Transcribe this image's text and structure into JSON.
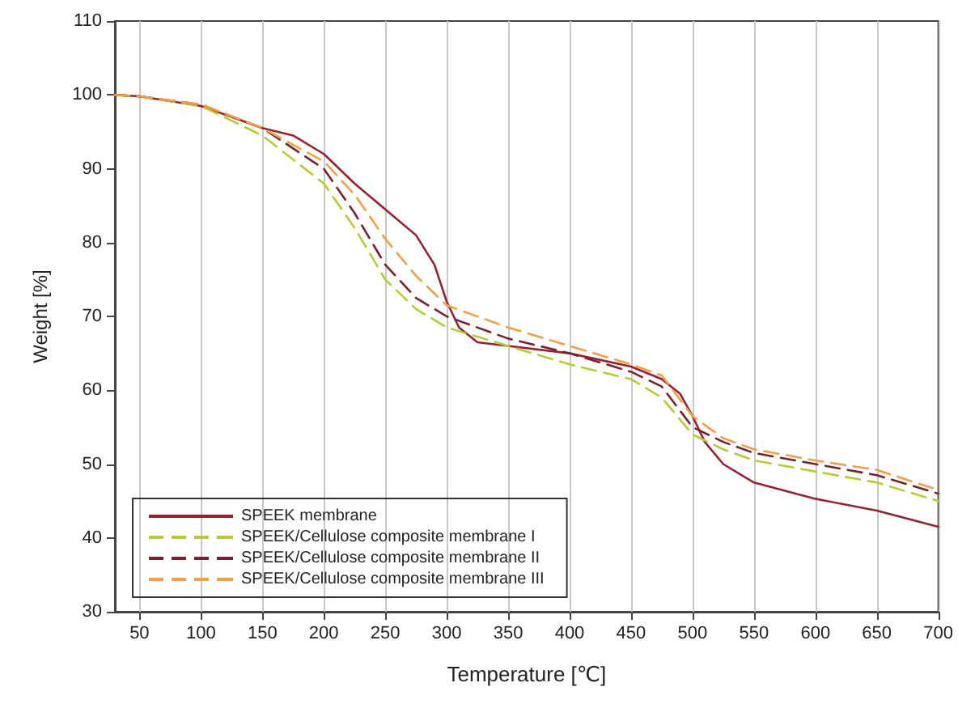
{
  "chart_data": {
    "type": "line",
    "xlabel": "Temperature [℃]",
    "ylabel": "Weight [%]",
    "xlim": [
      30,
      700
    ],
    "xticks": [
      50,
      100,
      150,
      200,
      250,
      300,
      350,
      400,
      450,
      500,
      550,
      600,
      650,
      700
    ],
    "ylim": [
      30,
      110
    ],
    "yticks": [
      30,
      40,
      50,
      60,
      70,
      80,
      90,
      100,
      110
    ],
    "grid": "x",
    "legend": "bottom left",
    "marker": "none",
    "x": [
      30,
      50,
      100,
      150,
      175,
      200,
      225,
      250,
      275,
      290,
      300,
      310,
      325,
      350,
      400,
      450,
      475,
      490,
      500,
      510,
      525,
      550,
      600,
      650,
      700
    ],
    "series": [
      {
        "name": "SPEEK membrane",
        "color": "#9b2030",
        "line_style": "solid",
        "values": [
          100,
          99.8,
          98.5,
          95.5,
          94.5,
          92,
          88,
          84.5,
          81,
          77,
          72,
          68.5,
          66.5,
          66,
          65,
          63.2,
          61.5,
          59.5,
          56.5,
          53,
          50,
          47.5,
          45.3,
          43.7,
          41.5
        ]
      },
      {
        "name": "SPEEK/Cellulose composite membrane I",
        "color": "#b8cc30",
        "line_style": "dashed",
        "x": [
          30,
          50,
          100,
          150,
          200,
          225,
          250,
          275,
          300,
          350,
          400,
          450,
          475,
          500,
          525,
          550,
          600,
          650,
          700
        ],
        "values": [
          100,
          99.8,
          98.5,
          94.5,
          88,
          82,
          75,
          71,
          68.5,
          66,
          63.5,
          61.5,
          59,
          54,
          52,
          50.5,
          49,
          47.5,
          45
        ]
      },
      {
        "name": "SPEEK/Cellulose composite membrane II",
        "color": "#7a2030",
        "line_style": "dashed",
        "x": [
          30,
          50,
          100,
          150,
          200,
          225,
          250,
          275,
          300,
          350,
          400,
          450,
          475,
          500,
          525,
          550,
          600,
          650,
          700
        ],
        "values": [
          100,
          99.8,
          98.7,
          95.5,
          90,
          84,
          77,
          72.5,
          70,
          67,
          65,
          62.5,
          60.5,
          55,
          53,
          51.5,
          50,
          48.5,
          46
        ]
      },
      {
        "name": "SPEEK/Cellulose composite membrane III",
        "color": "#f5a040",
        "line_style": "dashed",
        "x": [
          30,
          50,
          100,
          150,
          200,
          225,
          250,
          275,
          300,
          350,
          400,
          450,
          475,
          500,
          525,
          550,
          600,
          650,
          700
        ],
        "values": [
          100,
          99.8,
          98.7,
          95.5,
          91,
          86.5,
          80.5,
          75.5,
          71.5,
          68.5,
          66,
          63.5,
          62,
          56.5,
          53.5,
          52,
          50.5,
          49.2,
          46.5
        ]
      }
    ]
  }
}
